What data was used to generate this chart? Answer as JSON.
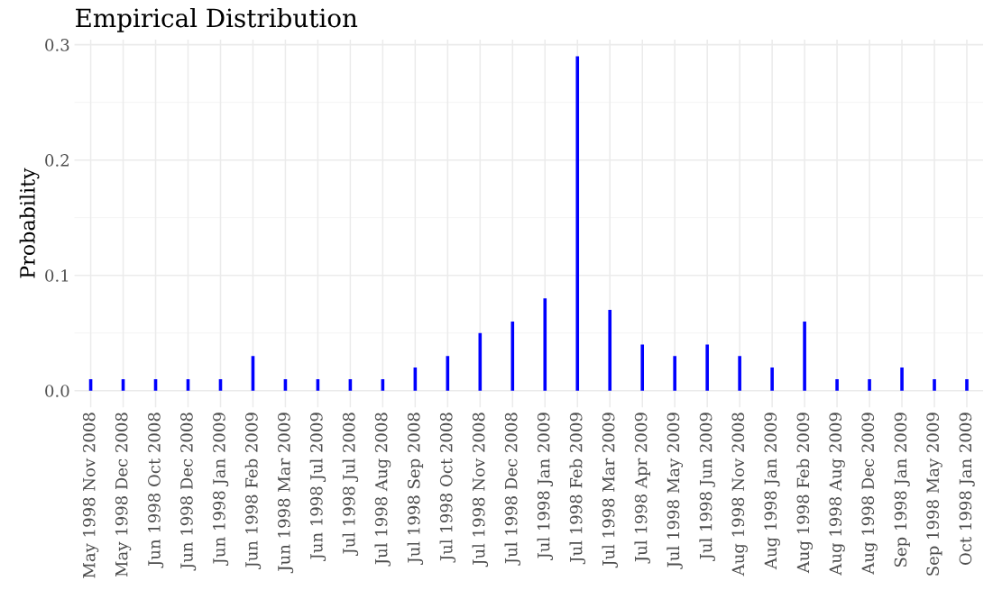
{
  "chart_data": {
    "type": "bar",
    "title": "Empirical Distribution",
    "ylabel": "Probability",
    "categories": [
      "May 1998 Nov 2008",
      "May 1998 Dec 2008",
      "Jun 1998 Oct 2008",
      "Jun 1998 Dec 2008",
      "Jun 1998 Jan 2009",
      "Jun 1998 Feb 2009",
      "Jun 1998 Mar 2009",
      "Jun 1998 Jul 2009",
      "Jul 1998 Jul 2008",
      "Jul 1998 Aug 2008",
      "Jul 1998 Sep 2008",
      "Jul 1998 Oct 2008",
      "Jul 1998 Nov 2008",
      "Jul 1998 Dec 2008",
      "Jul 1998 Jan 2009",
      "Jul 1998 Feb 2009",
      "Jul 1998 Mar 2009",
      "Jul 1998 Apr 2009",
      "Jul 1998 May 2009",
      "Jul 1998 Jun 2009",
      "Aug 1998 Nov 2008",
      "Aug 1998 Jan 2009",
      "Aug 1998 Feb 2009",
      "Aug 1998 Aug 2009",
      "Aug 1998 Dec 2009",
      "Sep 1998 Jan 2009",
      "Sep 1998 May 2009",
      "Oct 1998 Jan 2009"
    ],
    "values": [
      0.01,
      0.01,
      0.01,
      0.01,
      0.01,
      0.03,
      0.01,
      0.01,
      0.01,
      0.01,
      0.02,
      0.03,
      0.05,
      0.06,
      0.08,
      0.29,
      0.07,
      0.04,
      0.03,
      0.04,
      0.03,
      0.02,
      0.06,
      0.01,
      0.01,
      0.02,
      0.01,
      0.01
    ],
    "color": "#0000ff",
    "ylim": [
      -0.0145,
      0.3045
    ],
    "yticks": [
      {
        "value": 0,
        "label": "0.0"
      },
      {
        "value": 0.1,
        "label": "0.1"
      },
      {
        "value": 0.2,
        "label": "0.2"
      },
      {
        "value": 0.3,
        "label": "0.3"
      }
    ],
    "grid": true
  }
}
